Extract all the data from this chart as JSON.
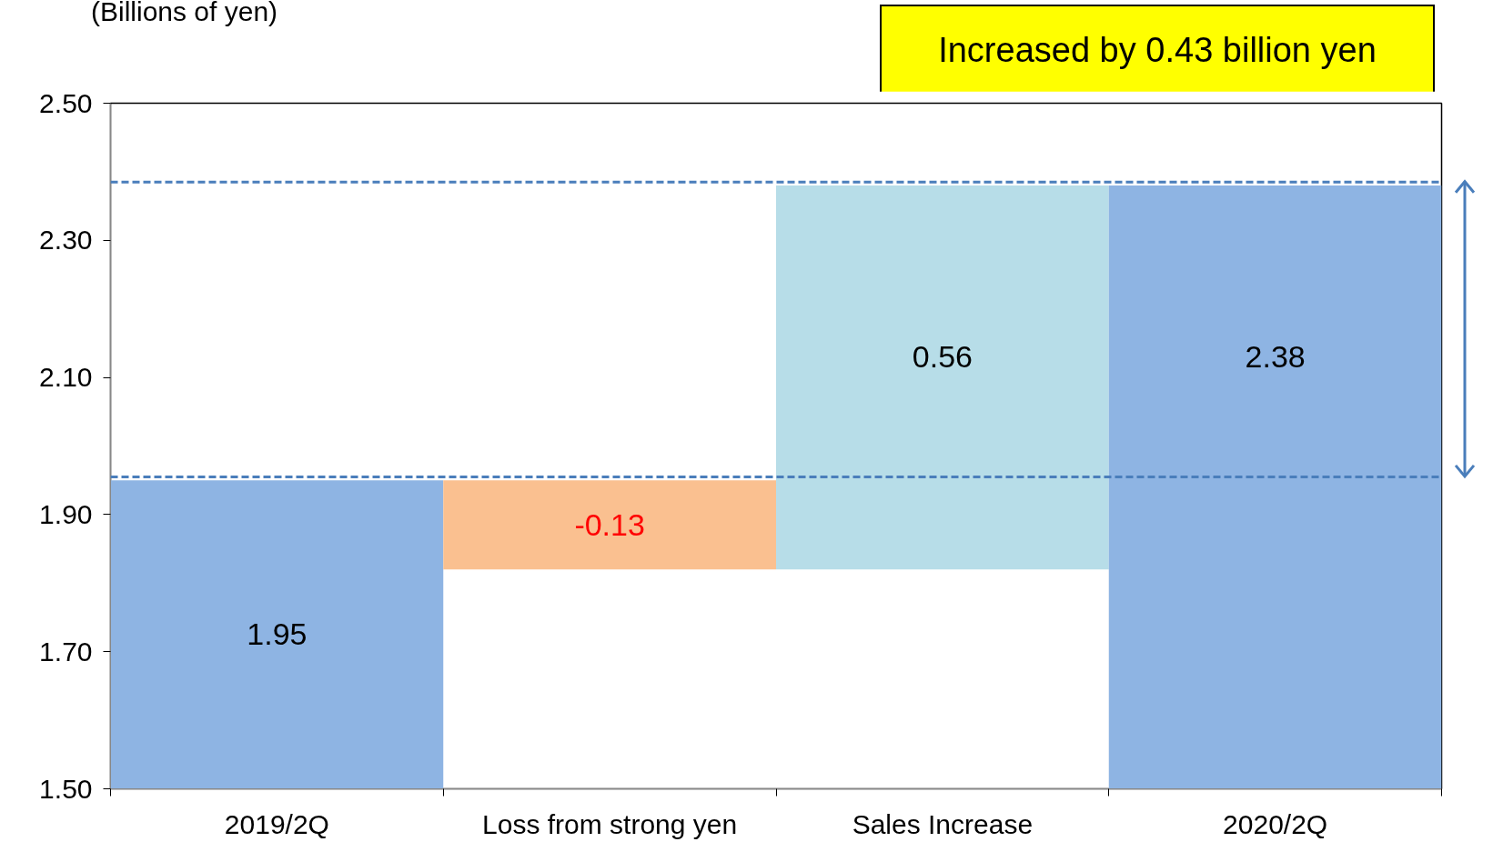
{
  "chart_data": {
    "type": "bar",
    "ylabel": "(Billions of yen)",
    "categories": [
      "2019/2Q",
      "Loss from strong yen",
      "Sales Increase",
      "2020/2Q"
    ],
    "values": [
      1.95,
      -0.13,
      0.56,
      2.38
    ],
    "base": [
      null,
      1.95,
      1.82,
      null
    ],
    "colors": [
      "#8eb4e3",
      "#fac090",
      "#b7dde8",
      "#8eb4e3"
    ],
    "data_labels": true,
    "ylim": [
      1.5,
      2.5
    ],
    "yticks": [
      {
        "value": 1.5,
        "label": "1.50"
      },
      {
        "value": 1.7,
        "label": "1.70"
      },
      {
        "value": 1.9,
        "label": "1.90"
      },
      {
        "value": 2.1,
        "label": "2.10"
      },
      {
        "value": 2.3,
        "label": "2.30"
      },
      {
        "value": 2.5,
        "label": "2.50"
      }
    ],
    "grid": false,
    "ref_lines": [
      {
        "axis": "y",
        "value": 1.955,
        "color": "#4a7ebb",
        "line_style": "dashed"
      },
      {
        "axis": "y",
        "value": 2.385,
        "color": "#4a7ebb",
        "line_style": "dashed"
      }
    ],
    "annotations": [
      "Increased by 0.43 billion yen"
    ]
  }
}
